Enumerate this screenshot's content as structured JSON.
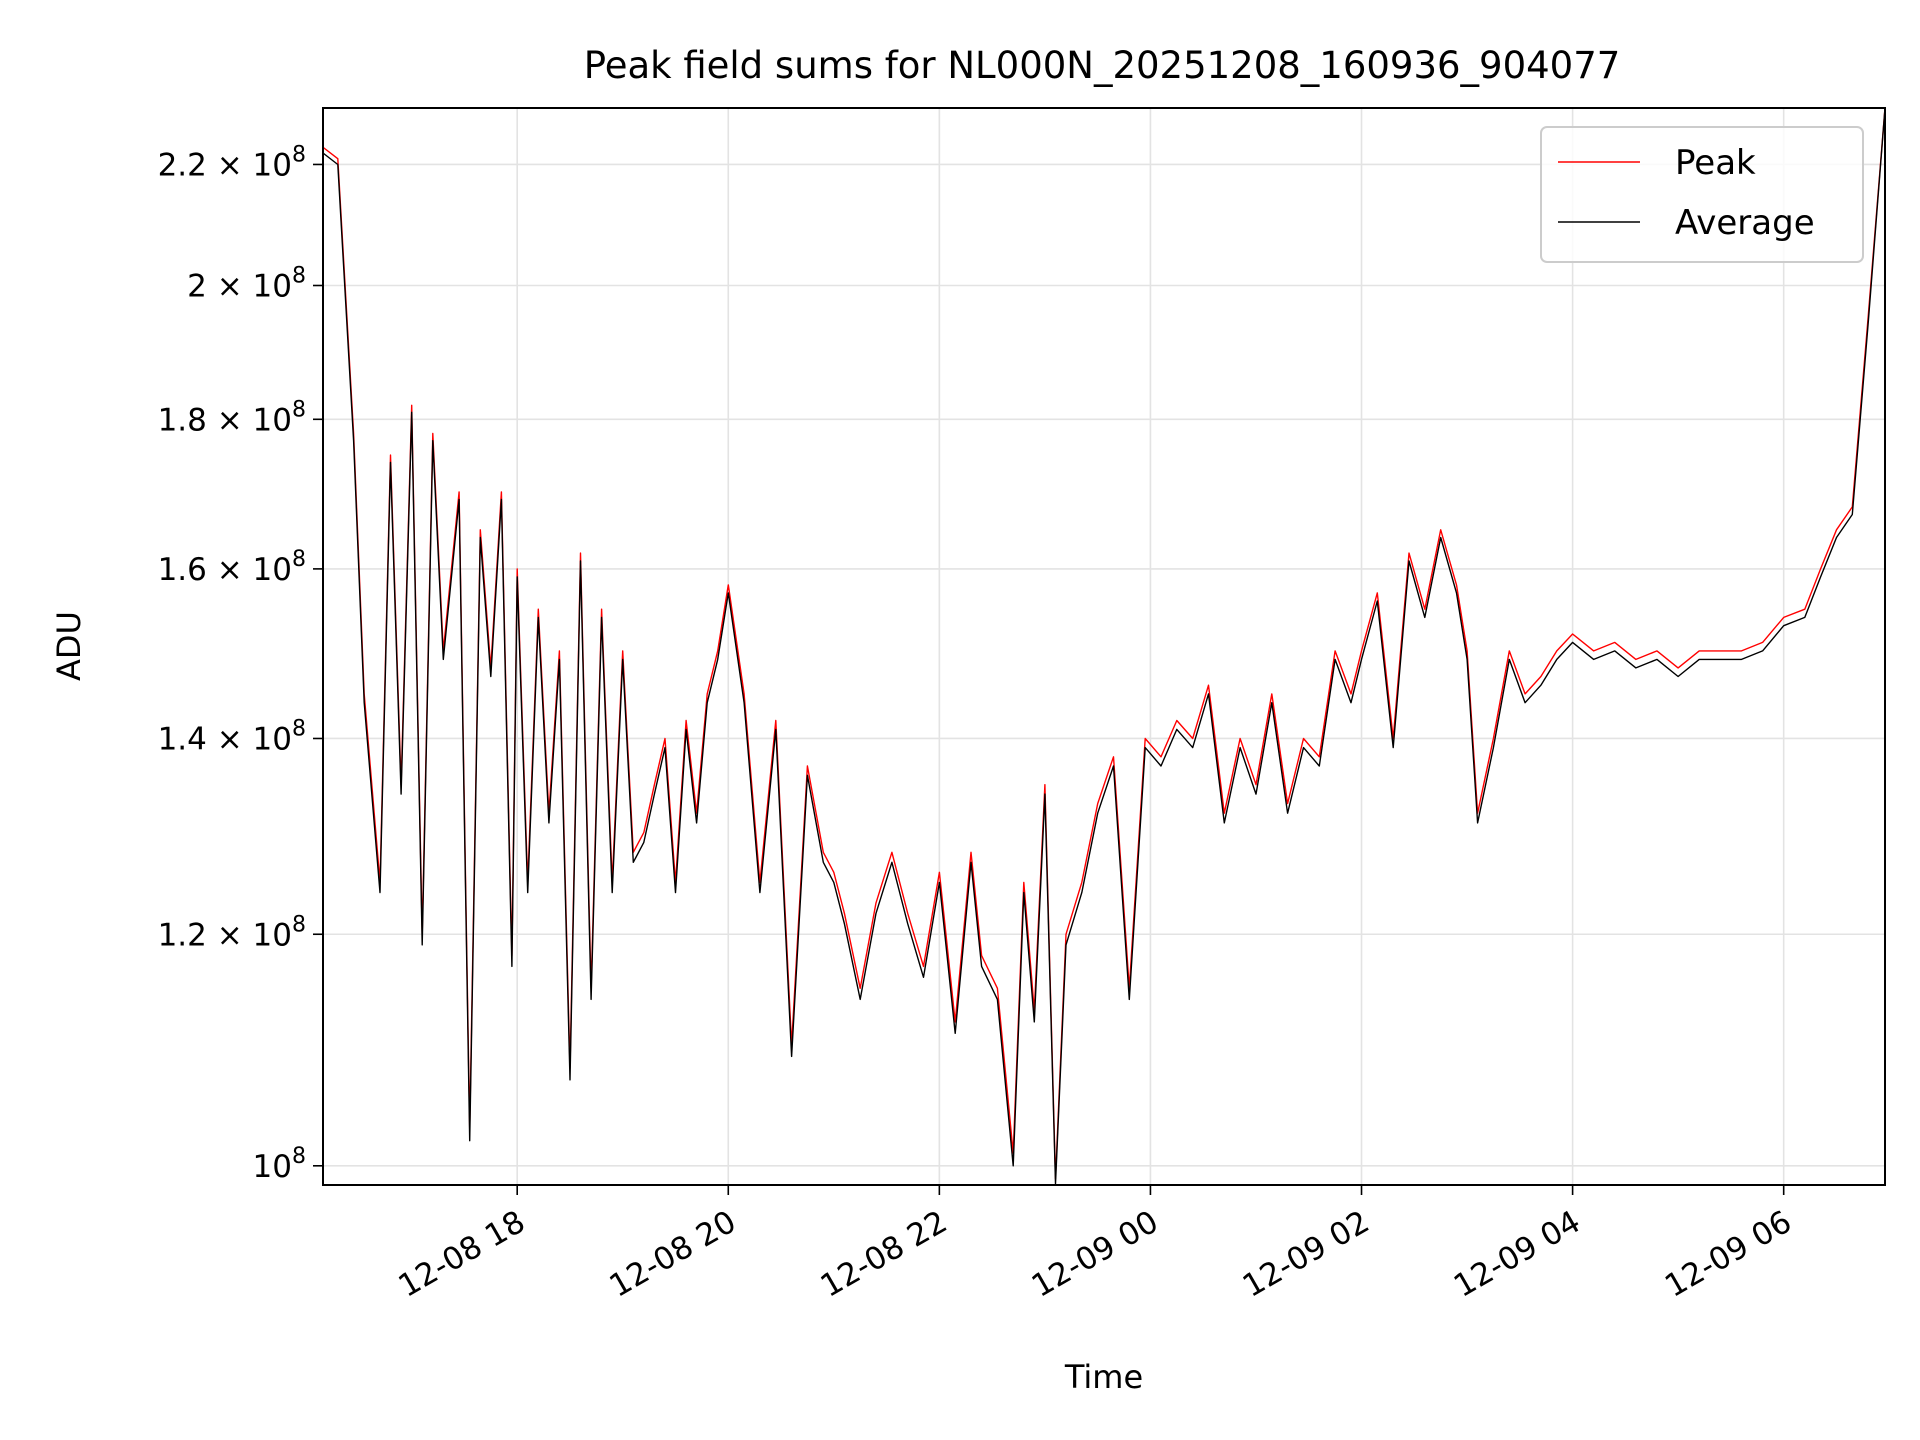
{
  "chart_data": {
    "type": "line",
    "title": "Peak field sums for NL000N_20251208_160936_904077",
    "xlabel": "Time",
    "ylabel": "ADU",
    "yscale": "log",
    "grid": true,
    "legend_position": "top-right",
    "x_unit": "hours since 12-08 00:00",
    "xlim": [
      16.16,
      30.96
    ],
    "ylim": [
      98500000,
      230000000
    ],
    "x_ticks": [
      {
        "value": 18,
        "label": "12-08 18"
      },
      {
        "value": 20,
        "label": "12-08 20"
      },
      {
        "value": 22,
        "label": "12-08 22"
      },
      {
        "value": 24,
        "label": "12-09 00"
      },
      {
        "value": 26,
        "label": "12-09 02"
      },
      {
        "value": 28,
        "label": "12-09 04"
      },
      {
        "value": 30,
        "label": "12-09 06"
      }
    ],
    "y_ticks": [
      {
        "value": 100000000,
        "base": "10",
        "exp": "8"
      },
      {
        "value": 120000000,
        "base": "1.2 × 10",
        "exp": "8"
      },
      {
        "value": 140000000,
        "base": "1.4 × 10",
        "exp": "8"
      },
      {
        "value": 160000000,
        "base": "1.6 × 10",
        "exp": "8"
      },
      {
        "value": 180000000,
        "base": "1.8 × 10",
        "exp": "8"
      },
      {
        "value": 200000000,
        "base": "2 × 10",
        "exp": "8"
      },
      {
        "value": 220000000,
        "base": "2.2 × 10",
        "exp": "8"
      }
    ],
    "series": [
      {
        "name": "Peak",
        "color": "#ff0000"
      },
      {
        "name": "Average",
        "color": "#000000"
      }
    ],
    "x": [
      16.16,
      16.3,
      16.45,
      16.55,
      16.7,
      16.8,
      16.9,
      17.0,
      17.1,
      17.2,
      17.3,
      17.45,
      17.55,
      17.65,
      17.75,
      17.85,
      17.95,
      18.0,
      18.1,
      18.2,
      18.3,
      18.4,
      18.5,
      18.6,
      18.7,
      18.8,
      18.9,
      19.0,
      19.1,
      19.2,
      19.3,
      19.4,
      19.5,
      19.6,
      19.7,
      19.8,
      19.9,
      20.0,
      20.15,
      20.3,
      20.45,
      20.6,
      20.75,
      20.9,
      21.0,
      21.1,
      21.25,
      21.4,
      21.55,
      21.7,
      21.85,
      22.0,
      22.15,
      22.3,
      22.4,
      22.55,
      22.7,
      22.8,
      22.9,
      23.0,
      23.1,
      23.2,
      23.35,
      23.5,
      23.65,
      23.8,
      23.95,
      24.1,
      24.25,
      24.4,
      24.55,
      24.7,
      24.85,
      25.0,
      25.15,
      25.3,
      25.45,
      25.6,
      25.75,
      25.9,
      26.0,
      26.15,
      26.3,
      26.45,
      26.6,
      26.75,
      26.9,
      27.0,
      27.1,
      27.25,
      27.4,
      27.55,
      27.7,
      27.85,
      28.0,
      28.2,
      28.4,
      28.6,
      28.8,
      29.0,
      29.2,
      29.4,
      29.6,
      29.8,
      30.0,
      30.2,
      30.35,
      30.5,
      30.65,
      30.8,
      30.96
    ],
    "values_peak": [
      223000000,
      221000000,
      178000000,
      145000000,
      125000000,
      175000000,
      135000000,
      182000000,
      120000000,
      178000000,
      150000000,
      170000000,
      103000000,
      165000000,
      148000000,
      170000000,
      118000000,
      160000000,
      125000000,
      155000000,
      132000000,
      150000000,
      108000000,
      162000000,
      115000000,
      155000000,
      125000000,
      150000000,
      128000000,
      130000000,
      135000000,
      140000000,
      125000000,
      142000000,
      132000000,
      145000000,
      150000000,
      158000000,
      145000000,
      125000000,
      142000000,
      110000000,
      137000000,
      128000000,
      126000000,
      122000000,
      115000000,
      123000000,
      128000000,
      122000000,
      117000000,
      126000000,
      112000000,
      128000000,
      118000000,
      115000000,
      101000000,
      125000000,
      113000000,
      135000000,
      99000000,
      120000000,
      125000000,
      133000000,
      138000000,
      115000000,
      140000000,
      138000000,
      142000000,
      140000000,
      146000000,
      132000000,
      140000000,
      135000000,
      145000000,
      133000000,
      140000000,
      138000000,
      150000000,
      145000000,
      150000000,
      157000000,
      140000000,
      162000000,
      155000000,
      165000000,
      158000000,
      150000000,
      132000000,
      140000000,
      150000000,
      145000000,
      147000000,
      150000000,
      152000000,
      150000000,
      151000000,
      149000000,
      150000000,
      148000000,
      150000000,
      150000000,
      150000000,
      151000000,
      154000000,
      155000000,
      160000000,
      165000000,
      168000000,
      195000000,
      230000000
    ],
    "values_avg": [
      222000000,
      220000000,
      177000000,
      144000000,
      124000000,
      174000000,
      134000000,
      181000000,
      119000000,
      177000000,
      149000000,
      169000000,
      102000000,
      164000000,
      147000000,
      169000000,
      117000000,
      159000000,
      124000000,
      154000000,
      131000000,
      149000000,
      107000000,
      161000000,
      114000000,
      154000000,
      124000000,
      149000000,
      127000000,
      129000000,
      134000000,
      139000000,
      124000000,
      141000000,
      131000000,
      144000000,
      149000000,
      157000000,
      144000000,
      124000000,
      141000000,
      109000000,
      136000000,
      127000000,
      125000000,
      121000000,
      114000000,
      122000000,
      127000000,
      121000000,
      116000000,
      125000000,
      111000000,
      127000000,
      117000000,
      114000000,
      100000000,
      124000000,
      112000000,
      134000000,
      98600000,
      119000000,
      124000000,
      132000000,
      137000000,
      114000000,
      139000000,
      137000000,
      141000000,
      139000000,
      145000000,
      131000000,
      139000000,
      134000000,
      144000000,
      132000000,
      139000000,
      137000000,
      149000000,
      144000000,
      149000000,
      156000000,
      139000000,
      161000000,
      154000000,
      164000000,
      157000000,
      149000000,
      131000000,
      139000000,
      149000000,
      144000000,
      146000000,
      149000000,
      151000000,
      149000000,
      150000000,
      148000000,
      149000000,
      147000000,
      149000000,
      149000000,
      149000000,
      150000000,
      153000000,
      154000000,
      159000000,
      164000000,
      167000000,
      194000000,
      230000000
    ]
  }
}
